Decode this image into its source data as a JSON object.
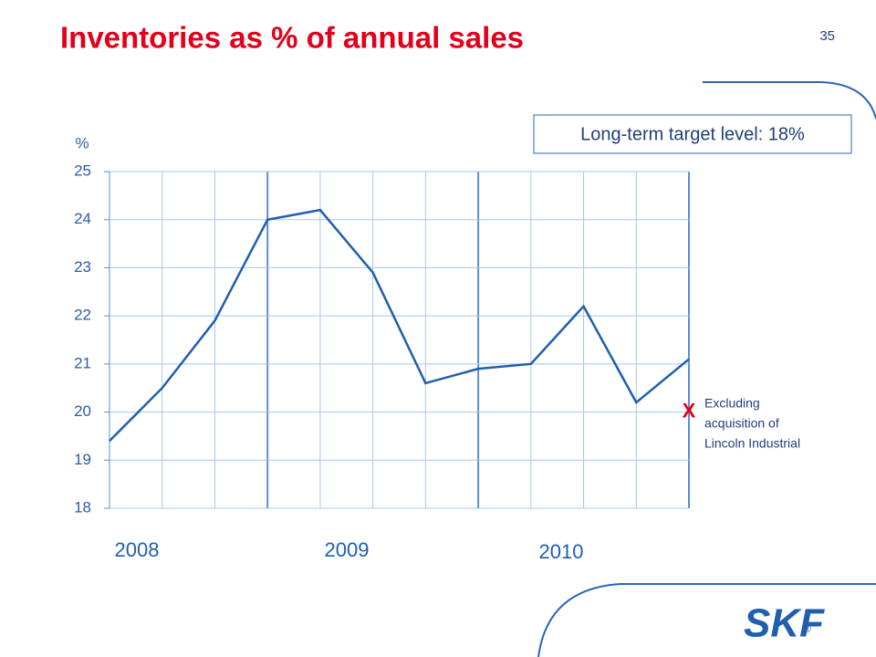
{
  "page_number": "35",
  "logo": "SKF",
  "chart_data": {
    "type": "line",
    "title": "Inventories as % of annual sales",
    "y_unit": "%",
    "target_note": "Long-term target level: 18%",
    "categories": [
      null,
      null,
      null,
      null,
      null,
      null,
      null,
      null,
      null,
      null,
      null,
      null
    ],
    "year_labels": [
      "2008",
      "2009",
      "2010"
    ],
    "series": [
      {
        "name": null,
        "color": "#1f5fae",
        "values": [
          19.4,
          20.5,
          21.9,
          24.0,
          24.2,
          22.9,
          20.6,
          20.9,
          21.0,
          22.2,
          20.2,
          21.1
        ]
      }
    ],
    "adjusted_point": {
      "marker": "X",
      "index": 11,
      "value": 20.0,
      "color": "#e3001b",
      "note_lines": [
        "Excluding",
        "acquisition of",
        "Lincoln Industrial"
      ]
    },
    "ylim": [
      18,
      25
    ],
    "yticks": [
      18,
      19,
      20,
      21,
      22,
      23,
      24,
      25
    ],
    "grid": true
  }
}
